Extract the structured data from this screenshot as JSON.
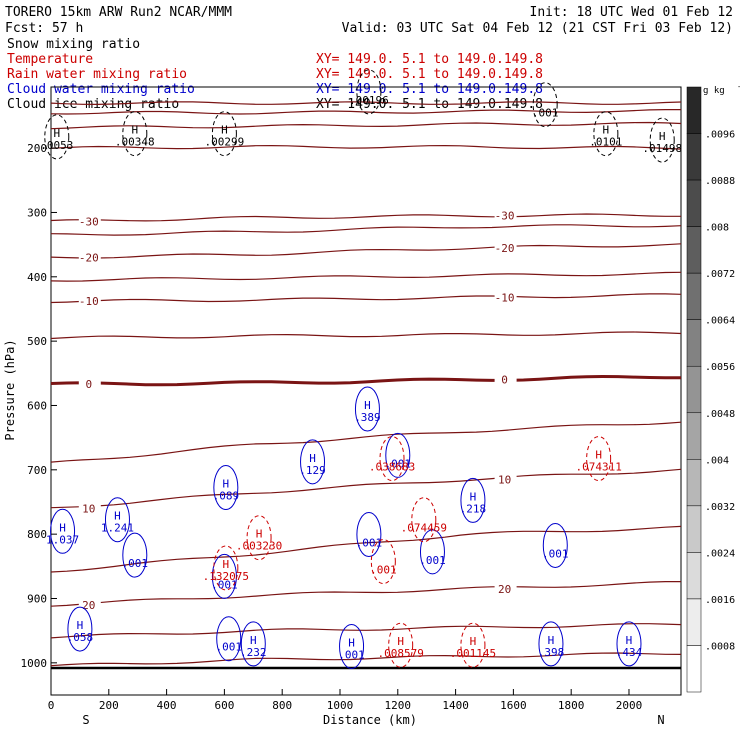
{
  "chart_data": {
    "type": "line",
    "header": {
      "model": "TORERO  15km ARW   Run2     NCAR/MMM",
      "init": "Init: 18 UTC Wed 01 Feb 12",
      "fcst": "Fcst:    57 h",
      "valid": "Valid: 03 UTC Sat 04 Feb 12 (21 CST Fri 03 Feb 12)"
    },
    "legend": [
      {
        "label": "Snow mixing ratio",
        "label_color": "#000000",
        "xy": "",
        "xy_color": "#000000"
      },
      {
        "label": "Temperature",
        "label_color": "#cc0000",
        "xy": "XY= 149.0.   5.1 to 149.0.149.8",
        "xy_color": "#cc0000"
      },
      {
        "label": "Rain water mixing ratio",
        "label_color": "#cc0000",
        "xy": "XY= 149.0.   5.1 to 149.0.149.8",
        "xy_color": "#cc0000"
      },
      {
        "label": "Cloud water mixing ratio",
        "label_color": "#0000cc",
        "xy": "XY= 149.0.   5.1 to 149.0.149.8",
        "xy_color": "#0000cc"
      },
      {
        "label": "Cloud ice mixing ratio",
        "label_color": "#000000",
        "xy": "XY= 149.0.   5.1 to 149.0.149.8",
        "xy_color": "#000000"
      }
    ],
    "xy_top": "XY= 149.0.   5.1 to 149.0.149.8",
    "xlabel": "Distance (km)",
    "ylabel": "Pressure (hPa)",
    "xlim": [
      0,
      2180
    ],
    "ylim": [
      1050,
      105
    ],
    "xticks": [
      "0",
      "200",
      "400",
      "600",
      "800",
      "1000",
      "1200",
      "1400",
      "1600",
      "1800",
      "2000"
    ],
    "yticks": [
      "200",
      "300",
      "400",
      "500",
      "600",
      "700",
      "800",
      "900",
      "1000"
    ],
    "end_labels": [
      "S",
      "N"
    ],
    "colorbar": {
      "unit": "g kg",
      "unit_exp": "-1",
      "ticks": [
        ".0096",
        ".0088",
        ".008",
        ".0072",
        ".0064",
        ".0056",
        ".0048",
        ".004",
        ".0032",
        ".0024",
        ".0016",
        ".0008"
      ]
    },
    "isotherms": [
      {
        "t": -50,
        "p": [
          130,
          130,
          130,
          130
        ],
        "label": ""
      },
      {
        "t": -45,
        "p": [
          145,
          145,
          143,
          142
        ],
        "label": ""
      },
      {
        "t": -40,
        "p": [
          168,
          166,
          163,
          162
        ],
        "label": ""
      },
      {
        "t": -35,
        "p": [
          200,
          198,
          198,
          200
        ],
        "label": ""
      },
      {
        "t": -30,
        "p": [
          314,
          308,
          305,
          304
        ],
        "label": "-30"
      },
      {
        "t": -25,
        "p": [
          335,
          330,
          322,
          320
        ],
        "label": ""
      },
      {
        "t": -20,
        "p": [
          370,
          365,
          355,
          350
        ],
        "label": "-20"
      },
      {
        "t": -15,
        "p": [
          405,
          402,
          398,
          395
        ],
        "label": ""
      },
      {
        "t": -10,
        "p": [
          438,
          436,
          432,
          428
        ],
        "label": "-10"
      },
      {
        "t": -5,
        "p": [
          495,
          492,
          490,
          487
        ],
        "label": ""
      },
      {
        "t": 0,
        "p": [
          567,
          565,
          560,
          555
        ],
        "label": "0"
      },
      {
        "t": 5,
        "p": [
          690,
          660,
          640,
          625
        ],
        "label": ""
      },
      {
        "t": 10,
        "p": [
          760,
          735,
          715,
          700
        ],
        "label": "10"
      },
      {
        "t": 15,
        "p": [
          858,
          830,
          800,
          790
        ],
        "label": ""
      },
      {
        "t": 20,
        "p": [
          910,
          895,
          885,
          875
        ],
        "label": "20"
      },
      {
        "t": 25,
        "p": [
          960,
          950,
          945,
          940
        ],
        "label": ""
      },
      {
        "t": 30,
        "p": [
          1005,
          995,
          990,
          985
        ],
        "label": ""
      }
    ],
    "series": [
      {
        "name": "Cloud water mixing ratio",
        "color": "#0000cc",
        "points": [
          {
            "x": 40,
            "p": 808,
            "h": "H",
            "v": "1.037"
          },
          {
            "x": 230,
            "p": 790,
            "h": "H",
            "v": "1.241"
          },
          {
            "x": 290,
            "p": 845,
            "h": "",
            "v": ".001"
          },
          {
            "x": 605,
            "p": 740,
            "h": "H",
            "v": ".089"
          },
          {
            "x": 600,
            "p": 878,
            "h": "",
            "v": ".001"
          },
          {
            "x": 615,
            "p": 975,
            "h": "",
            "v": ".001"
          },
          {
            "x": 700,
            "p": 983,
            "h": "H",
            "v": ".232"
          },
          {
            "x": 905,
            "p": 700,
            "h": "H",
            "v": ".129"
          },
          {
            "x": 1095,
            "p": 618,
            "h": "H",
            "v": ".389"
          },
          {
            "x": 1200,
            "p": 690,
            "h": "",
            "v": ".001"
          },
          {
            "x": 1100,
            "p": 813,
            "h": "",
            "v": ".001"
          },
          {
            "x": 1320,
            "p": 840,
            "h": "",
            "v": ".001"
          },
          {
            "x": 1460,
            "p": 760,
            "h": "H",
            "v": ".218"
          },
          {
            "x": 1745,
            "p": 830,
            "h": "",
            "v": ".001"
          },
          {
            "x": 1040,
            "p": 987,
            "h": "H",
            "v": ".001"
          },
          {
            "x": 100,
            "p": 960,
            "h": "H",
            "v": ".058"
          },
          {
            "x": 1730,
            "p": 983,
            "h": "H",
            "v": ".398"
          },
          {
            "x": 2000,
            "p": 983,
            "h": "H",
            "v": ".434"
          }
        ]
      },
      {
        "name": "Rain water mixing ratio",
        "color": "#cc0000",
        "points": [
          {
            "x": 605,
            "p": 865,
            "h": "H",
            "v": ".132075"
          },
          {
            "x": 720,
            "p": 818,
            "h": "H",
            "v": ".003230"
          },
          {
            "x": 1180,
            "p": 695,
            "h": "",
            "v": ".038683"
          },
          {
            "x": 1150,
            "p": 855,
            "h": "",
            "v": ".001"
          },
          {
            "x": 1290,
            "p": 790,
            "h": "",
            "v": ".074459"
          },
          {
            "x": 1210,
            "p": 985,
            "h": "H",
            "v": ".008579"
          },
          {
            "x": 1460,
            "p": 985,
            "h": "H",
            "v": ".001145"
          },
          {
            "x": 1895,
            "p": 695,
            "h": "H",
            "v": ".074311"
          }
        ]
      },
      {
        "name": "Cloud ice mixing ratio",
        "color": "#000000",
        "points": [
          {
            "x": 20,
            "p": 195,
            "h": "H",
            "v": ".0053"
          },
          {
            "x": 290,
            "p": 190,
            "h": "H",
            "v": ".00348"
          },
          {
            "x": 600,
            "p": 190,
            "h": "H",
            "v": ".00299"
          },
          {
            "x": 1100,
            "p": 125,
            "h": "",
            "v": ".00196"
          },
          {
            "x": 1710,
            "p": 145,
            "h": "",
            "v": ".001"
          },
          {
            "x": 1920,
            "p": 190,
            "h": "H",
            "v": ".0101"
          },
          {
            "x": 2115,
            "p": 200,
            "h": "H",
            "v": ".01498"
          }
        ]
      }
    ]
  }
}
